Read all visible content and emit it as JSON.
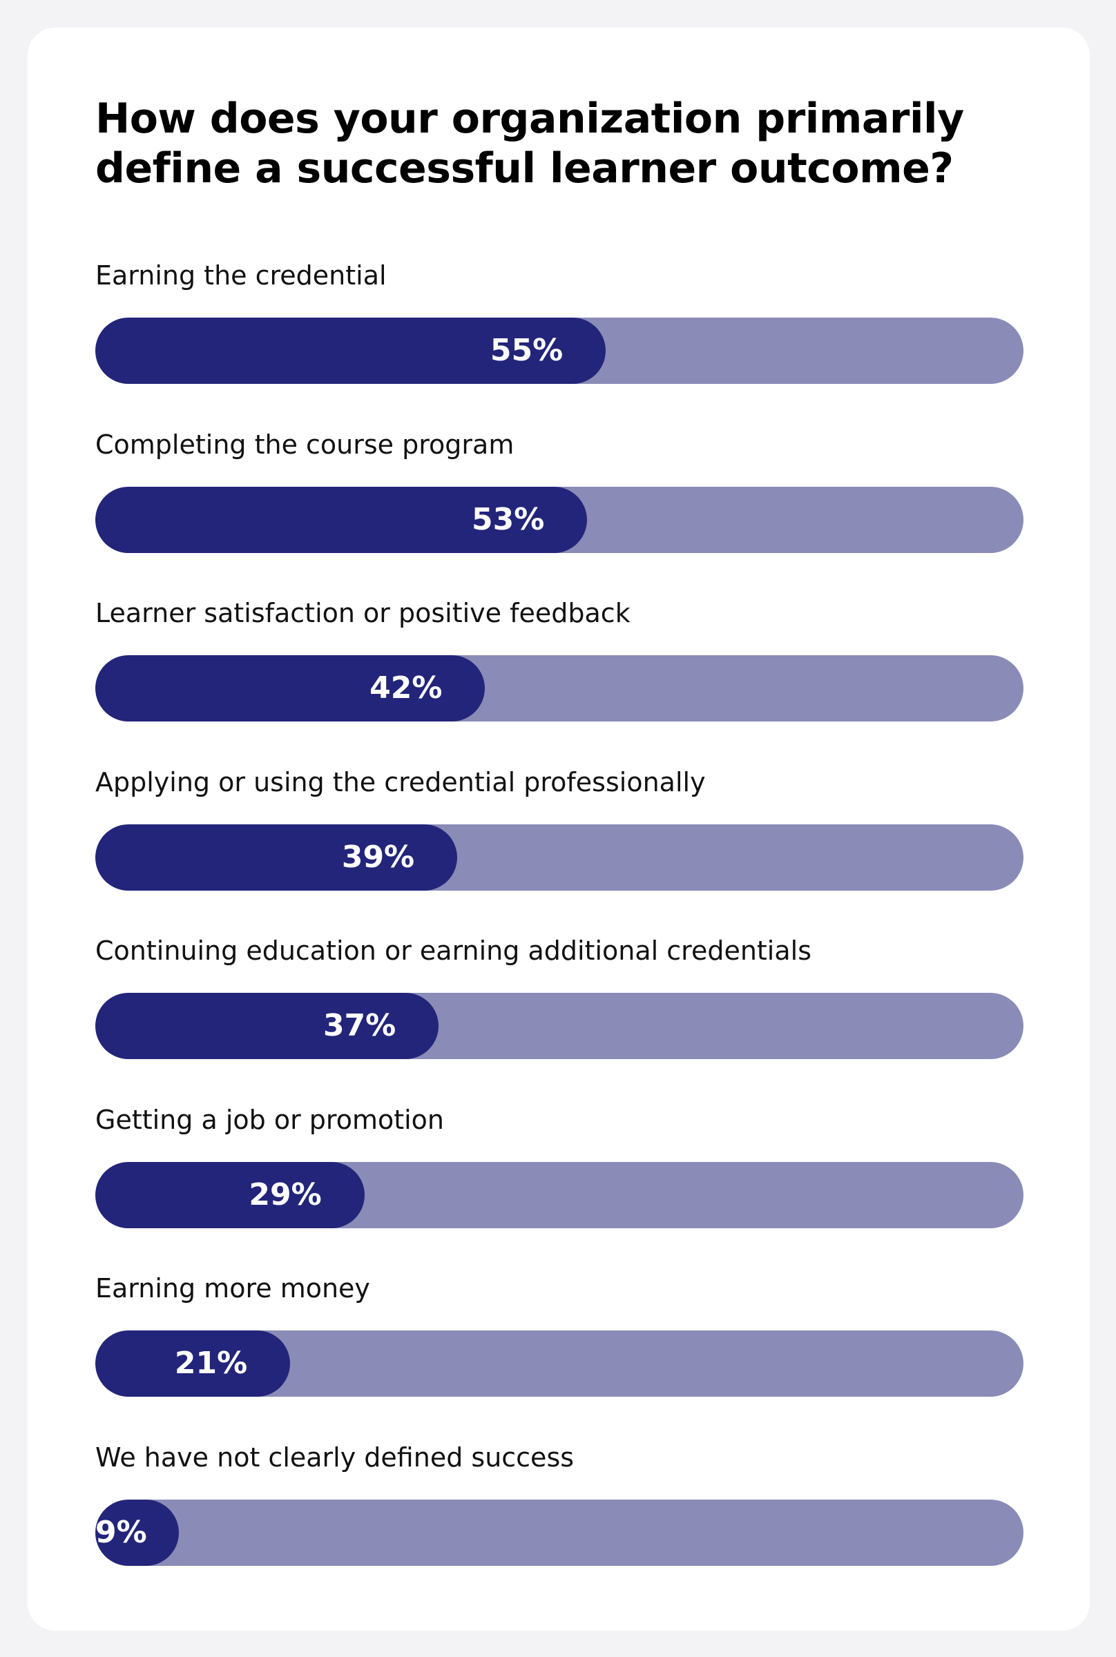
{
  "chart_data": {
    "type": "bar",
    "orientation": "horizontal",
    "title": "How does your organization primarily define a successful learner outcome?",
    "categories": [
      "Earning the credential",
      "Completing the course program",
      "Learner satisfaction or positive feedback",
      "Applying or using the credential professionally",
      "Continuing education or earning additional credentials",
      "Getting a job or promotion",
      "Earning more money",
      "We have not clearly defined success"
    ],
    "values": [
      55,
      53,
      42,
      39,
      37,
      29,
      21,
      9
    ],
    "value_labels": [
      "55%",
      "53%",
      "42%",
      "39%",
      "37%",
      "29%",
      "21%",
      "9%"
    ],
    "xlim": [
      0,
      100
    ],
    "grid": false,
    "colors": {
      "fill": "#23257a",
      "track": "#8a8bb7",
      "value_text": "#ffffff"
    }
  }
}
